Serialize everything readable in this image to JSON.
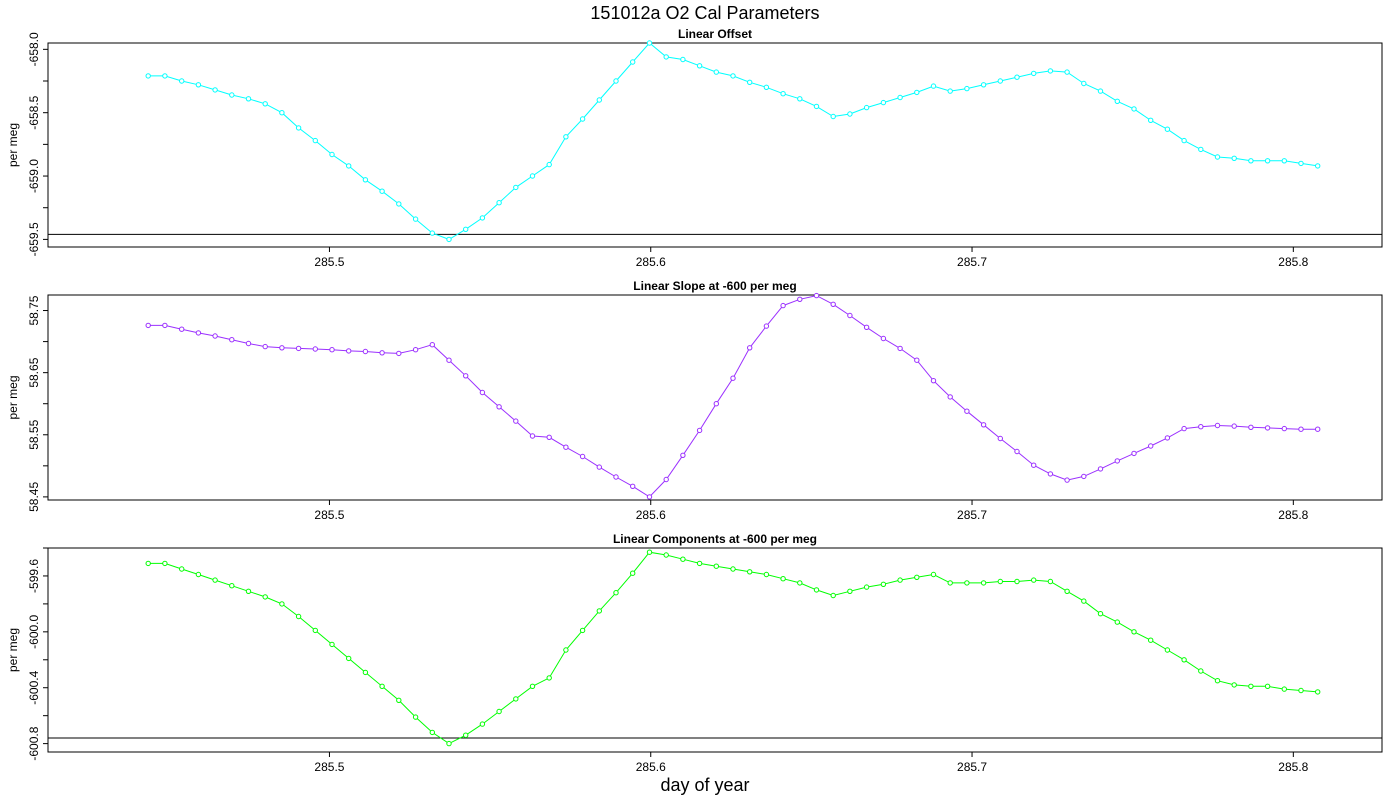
{
  "figure": {
    "title": "151012a   O2 Cal Parameters",
    "xlabel": "day of year"
  },
  "chart_data": [
    {
      "type": "line",
      "title": "Linear Offset",
      "xlabel": "",
      "ylabel": "per meg",
      "color": "#00FFFF",
      "xlim": [
        285.4124,
        285.8276
      ],
      "ylim": [
        -659.56,
        -657.95
      ],
      "xticks": [
        "285.5",
        "285.6",
        "285.7",
        "285.8"
      ],
      "yticks": [
        "-658.0",
        "-658.5",
        "-659.0",
        "-659.5"
      ],
      "hline": -659.46,
      "series": [
        {
          "x": [
            285.4436,
            285.4488,
            285.454,
            285.4592,
            285.4644,
            285.4696,
            285.4748,
            285.48,
            285.4852,
            285.4904,
            285.4956,
            285.5008,
            285.506,
            285.5112,
            285.5164,
            285.5216,
            285.5268,
            285.532,
            285.5372,
            285.5424,
            285.5476,
            285.5528,
            285.558,
            285.5632,
            285.5684,
            285.5736,
            285.5788,
            285.584,
            285.5892,
            285.5944,
            285.5996,
            285.6048,
            285.61,
            285.6152,
            285.6204,
            285.6256,
            285.6308,
            285.636,
            285.6412,
            285.6464,
            285.6516,
            285.6568,
            285.662,
            285.6672,
            285.6724,
            285.6776,
            285.6828,
            285.688,
            285.6932,
            285.6984,
            285.7036,
            285.7088,
            285.714,
            285.7192,
            285.7244,
            285.7296,
            285.7348,
            285.74,
            285.7452,
            285.7504,
            285.7556,
            285.7608,
            285.766,
            285.7712,
            285.7764,
            285.7816,
            285.7868,
            285.792,
            285.7972,
            285.8024,
            285.8076
          ],
          "values": [
            -658.21,
            -658.21,
            -658.25,
            -658.28,
            -658.32,
            -658.36,
            -658.39,
            -658.43,
            -658.5,
            -658.62,
            -658.72,
            -658.83,
            -658.92,
            -659.03,
            -659.12,
            -659.22,
            -659.34,
            -659.45,
            -659.5,
            -659.42,
            -659.33,
            -659.21,
            -659.09,
            -659.0,
            -658.91,
            -658.69,
            -658.55,
            -658.4,
            -658.25,
            -658.1,
            -657.95,
            -658.06,
            -658.08,
            -658.13,
            -658.18,
            -658.21,
            -658.26,
            -658.3,
            -658.35,
            -658.39,
            -658.45,
            -658.53,
            -658.51,
            -658.46,
            -658.42,
            -658.38,
            -658.34,
            -658.29,
            -658.33,
            -658.31,
            -658.28,
            -658.25,
            -658.22,
            -658.19,
            -658.17,
            -658.18,
            -658.27,
            -658.33,
            -658.41,
            -658.47,
            -658.56,
            -658.63,
            -658.72,
            -658.79,
            -658.85,
            -658.86,
            -658.88,
            -658.88,
            -658.88,
            -658.9,
            -658.92
          ]
        }
      ]
    },
    {
      "type": "line",
      "title": "Linear Slope at -600 per meg",
      "xlabel": "",
      "ylabel": "per meg",
      "color": "#9B30FF",
      "xlim": [
        285.4124,
        285.8276
      ],
      "ylim": [
        58.445,
        58.775
      ],
      "xticks": [
        "285.5",
        "285.6",
        "285.7",
        "285.8"
      ],
      "yticks": [
        "58.45",
        "58.55",
        "58.65",
        "58.75"
      ],
      "hline": null,
      "series": [
        {
          "x": [
            285.4436,
            285.4488,
            285.454,
            285.4592,
            285.4644,
            285.4696,
            285.4748,
            285.48,
            285.4852,
            285.4904,
            285.4956,
            285.5008,
            285.506,
            285.5112,
            285.5164,
            285.5216,
            285.5268,
            285.532,
            285.5372,
            285.5424,
            285.5476,
            285.5528,
            285.558,
            285.5632,
            285.5684,
            285.5736,
            285.5788,
            285.584,
            285.5892,
            285.5944,
            285.5996,
            285.6048,
            285.61,
            285.6152,
            285.6204,
            285.6256,
            285.6308,
            285.636,
            285.6412,
            285.6464,
            285.6516,
            285.6568,
            285.662,
            285.6672,
            285.6724,
            285.6776,
            285.6828,
            285.688,
            285.6932,
            285.6984,
            285.7036,
            285.7088,
            285.714,
            285.7192,
            285.7244,
            285.7296,
            285.7348,
            285.74,
            285.7452,
            285.7504,
            285.7556,
            285.7608,
            285.766,
            285.7712,
            285.7764,
            285.7816,
            285.7868,
            285.792,
            285.7972,
            285.8024,
            285.8076
          ],
          "values": [
            58.726,
            58.726,
            58.72,
            58.714,
            58.709,
            58.703,
            58.697,
            58.692,
            58.69,
            58.689,
            58.688,
            58.687,
            58.685,
            58.684,
            58.682,
            58.681,
            58.687,
            58.695,
            58.67,
            58.645,
            58.618,
            58.595,
            58.572,
            58.548,
            58.546,
            58.53,
            58.515,
            58.498,
            58.482,
            58.467,
            58.45,
            58.478,
            58.517,
            58.557,
            58.6,
            58.641,
            58.69,
            58.725,
            58.758,
            58.768,
            58.774,
            58.76,
            58.742,
            58.723,
            58.705,
            58.689,
            58.67,
            58.637,
            58.611,
            58.588,
            58.566,
            58.544,
            58.523,
            58.501,
            58.487,
            58.477,
            58.483,
            58.495,
            58.508,
            58.52,
            58.532,
            58.545,
            58.56,
            58.563,
            58.565,
            58.564,
            58.562,
            58.561,
            58.56,
            58.559,
            58.559
          ]
        }
      ]
    },
    {
      "type": "line",
      "title": "Linear Components at -600 per meg",
      "xlabel": "day of year",
      "ylabel": "per meg",
      "color": "#00FF00",
      "xlim": [
        285.4124,
        285.8276
      ],
      "ylim": [
        -600.86,
        -599.4
      ],
      "xticks": [
        "285.5",
        "285.6",
        "285.7",
        "285.8"
      ],
      "yticks": [
        "-599.6",
        "-600.0",
        "-600.4",
        "-600.8"
      ],
      "hline": -600.76,
      "series": [
        {
          "x": [
            285.4436,
            285.4488,
            285.454,
            285.4592,
            285.4644,
            285.4696,
            285.4748,
            285.48,
            285.4852,
            285.4904,
            285.4956,
            285.5008,
            285.506,
            285.5112,
            285.5164,
            285.5216,
            285.5268,
            285.532,
            285.5372,
            285.5424,
            285.5476,
            285.5528,
            285.558,
            285.5632,
            285.5684,
            285.5736,
            285.5788,
            285.584,
            285.5892,
            285.5944,
            285.5996,
            285.6048,
            285.61,
            285.6152,
            285.6204,
            285.6256,
            285.6308,
            285.636,
            285.6412,
            285.6464,
            285.6516,
            285.6568,
            285.662,
            285.6672,
            285.6724,
            285.6776,
            285.6828,
            285.688,
            285.6932,
            285.6984,
            285.7036,
            285.7088,
            285.714,
            285.7192,
            285.7244,
            285.7296,
            285.7348,
            285.74,
            285.7452,
            285.7504,
            285.7556,
            285.7608,
            285.766,
            285.7712,
            285.7764,
            285.7816,
            285.7868,
            285.792,
            285.7972,
            285.8024,
            285.8076
          ],
          "values": [
            -599.51,
            -599.51,
            -599.55,
            -599.59,
            -599.63,
            -599.67,
            -599.71,
            -599.75,
            -599.8,
            -599.89,
            -599.99,
            -600.09,
            -600.19,
            -600.29,
            -600.39,
            -600.49,
            -600.61,
            -600.72,
            -600.8,
            -600.74,
            -600.66,
            -600.57,
            -600.48,
            -600.39,
            -600.33,
            -600.13,
            -599.99,
            -599.85,
            -599.72,
            -599.58,
            -599.43,
            -599.45,
            -599.48,
            -599.51,
            -599.53,
            -599.55,
            -599.57,
            -599.59,
            -599.62,
            -599.65,
            -599.7,
            -599.74,
            -599.71,
            -599.68,
            -599.66,
            -599.63,
            -599.61,
            -599.59,
            -599.65,
            -599.65,
            -599.65,
            -599.64,
            -599.64,
            -599.63,
            -599.64,
            -599.71,
            -599.78,
            -599.87,
            -599.93,
            -600.0,
            -600.06,
            -600.13,
            -600.2,
            -600.28,
            -600.35,
            -600.38,
            -600.39,
            -600.39,
            -600.41,
            -600.42,
            -600.43
          ]
        }
      ]
    }
  ]
}
